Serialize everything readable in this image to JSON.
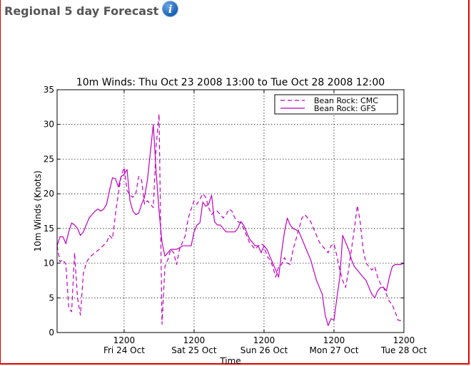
{
  "panel": {
    "title": "Regional 5 day Forecast",
    "info_icon": "info-icon"
  },
  "colors": {
    "series": "#bf00bf",
    "border": "#e00000",
    "title_text": "#555555"
  },
  "chart_data": {
    "type": "line",
    "title": "10m Winds: Thu Oct 23 2008 13:00 to Tue Oct 28 2008 12:00",
    "xlabel": "Time",
    "ylabel": "10m Winds (Knots)",
    "xlim": [
      0,
      119
    ],
    "ylim": [
      0,
      35
    ],
    "yticks": [
      0,
      5,
      10,
      15,
      20,
      25,
      30,
      35
    ],
    "x_unit": "hours since Thu Oct 23 2008 13:00",
    "xticks": [
      {
        "x": 23,
        "time": "1200",
        "date": "Fri 24 Oct"
      },
      {
        "x": 47,
        "time": "1200",
        "date": "Sat 25 Oct"
      },
      {
        "x": 71,
        "time": "1200",
        "date": "Sun 26 Oct"
      },
      {
        "x": 95,
        "time": "1200",
        "date": "Mon 27 Oct"
      },
      {
        "x": 119,
        "time": "1200",
        "date": "Tue 28 Oct"
      }
    ],
    "grid": true,
    "legend_position": "top-right",
    "series": [
      {
        "name": "Bean Rock: CMC",
        "style": "dashed",
        "points": [
          [
            0,
            12.5
          ],
          [
            1,
            10.2
          ],
          [
            2,
            10.5
          ],
          [
            3,
            9.8
          ],
          [
            4,
            3.5
          ],
          [
            5,
            3.0
          ],
          [
            6,
            11.5
          ],
          [
            7,
            5.0
          ],
          [
            8,
            2.5
          ],
          [
            9,
            8.5
          ],
          [
            10,
            10.0
          ],
          [
            11,
            10.8
          ],
          [
            13,
            11.5
          ],
          [
            15,
            12.2
          ],
          [
            17,
            13.0
          ],
          [
            18,
            14.0
          ],
          [
            19,
            13.5
          ],
          [
            20,
            17.0
          ],
          [
            21,
            20.0
          ],
          [
            22,
            22.5
          ],
          [
            23,
            23.8
          ],
          [
            24,
            20.5
          ],
          [
            25,
            19.8
          ],
          [
            26,
            19.5
          ],
          [
            27,
            20.0
          ],
          [
            28,
            22.5
          ],
          [
            29,
            22.0
          ],
          [
            30,
            18.5
          ],
          [
            31,
            19.0
          ],
          [
            32,
            18.5
          ],
          [
            33,
            18.0
          ],
          [
            34,
            27.0
          ],
          [
            35,
            31.5
          ],
          [
            36,
            1.2
          ],
          [
            37,
            9.5
          ],
          [
            38,
            10.5
          ],
          [
            39,
            12.0
          ],
          [
            40,
            11.5
          ],
          [
            41,
            9.8
          ],
          [
            42,
            12.0
          ],
          [
            43,
            13.0
          ],
          [
            44,
            14.0
          ],
          [
            45,
            16.5
          ],
          [
            46,
            17.8
          ],
          [
            47,
            19.0
          ],
          [
            48,
            18.5
          ],
          [
            49,
            19.2
          ],
          [
            50,
            20.0
          ],
          [
            51,
            19.5
          ],
          [
            52,
            18.0
          ],
          [
            53,
            17.0
          ],
          [
            54,
            17.5
          ],
          [
            55,
            17.5
          ],
          [
            56,
            17.0
          ],
          [
            57,
            16.5
          ],
          [
            58,
            17.0
          ],
          [
            59,
            17.8
          ],
          [
            60,
            17.5
          ],
          [
            61,
            16.5
          ],
          [
            62,
            16.0
          ],
          [
            63,
            15.8
          ],
          [
            64,
            15.0
          ],
          [
            65,
            14.0
          ],
          [
            66,
            13.0
          ],
          [
            67,
            12.5
          ],
          [
            68,
            12.0
          ],
          [
            69,
            12.5
          ],
          [
            70,
            12.8
          ],
          [
            71,
            12.5
          ],
          [
            72,
            11.0
          ],
          [
            73,
            10.5
          ],
          [
            74,
            9.5
          ],
          [
            75,
            8.0
          ],
          [
            76,
            9.5
          ],
          [
            77,
            9.8
          ],
          [
            78,
            10.8
          ],
          [
            79,
            10.0
          ],
          [
            80,
            9.8
          ],
          [
            81,
            12.0
          ],
          [
            82,
            13.5
          ],
          [
            83,
            15.0
          ],
          [
            84,
            16.5
          ],
          [
            85,
            17.0
          ],
          [
            86,
            16.5
          ],
          [
            87,
            16.0
          ],
          [
            88,
            15.0
          ],
          [
            89,
            14.0
          ],
          [
            90,
            13.0
          ],
          [
            91,
            12.5
          ],
          [
            92,
            12.0
          ],
          [
            93,
            11.5
          ],
          [
            94,
            12.5
          ],
          [
            95,
            12.8
          ],
          [
            96,
            11.0
          ],
          [
            97,
            9.0
          ],
          [
            98,
            7.5
          ],
          [
            99,
            6.5
          ],
          [
            100,
            9.0
          ],
          [
            101,
            12.0
          ],
          [
            102,
            15.0
          ],
          [
            103,
            18.3
          ],
          [
            104,
            16.0
          ],
          [
            105,
            12.0
          ],
          [
            106,
            10.0
          ],
          [
            107,
            9.5
          ],
          [
            108,
            9.0
          ],
          [
            109,
            9.5
          ],
          [
            110,
            8.0
          ],
          [
            111,
            7.0
          ],
          [
            112,
            6.5
          ],
          [
            113,
            5.5
          ],
          [
            114,
            4.5
          ],
          [
            115,
            4.0
          ],
          [
            116,
            3.0
          ],
          [
            117,
            1.8
          ],
          [
            118,
            1.7
          ],
          [
            119,
            1.7
          ]
        ]
      },
      {
        "name": "Bean Rock: GFS",
        "style": "solid",
        "points": [
          [
            0,
            12.5
          ],
          [
            1,
            13.8
          ],
          [
            2,
            13.8
          ],
          [
            3,
            12.8
          ],
          [
            4,
            14.5
          ],
          [
            5,
            15.8
          ],
          [
            6,
            15.5
          ],
          [
            7,
            15.0
          ],
          [
            8,
            14.0
          ],
          [
            9,
            14.5
          ],
          [
            10,
            15.5
          ],
          [
            11,
            16.5
          ],
          [
            12,
            17.0
          ],
          [
            13,
            17.5
          ],
          [
            14,
            17.8
          ],
          [
            15,
            17.5
          ],
          [
            16,
            17.8
          ],
          [
            17,
            18.5
          ],
          [
            18,
            20.5
          ],
          [
            19,
            22.3
          ],
          [
            20,
            22.2
          ],
          [
            21,
            21.0
          ],
          [
            22,
            22.5
          ],
          [
            23,
            22.8
          ],
          [
            24,
            23.5
          ],
          [
            25,
            19.0
          ],
          [
            26,
            17.5
          ],
          [
            27,
            17.0
          ],
          [
            28,
            17.2
          ],
          [
            29,
            18.5
          ],
          [
            30,
            19.5
          ],
          [
            31,
            22.0
          ],
          [
            32,
            26.0
          ],
          [
            33,
            30.0
          ],
          [
            34,
            23.0
          ],
          [
            35,
            17.5
          ],
          [
            36,
            13.0
          ],
          [
            37,
            11.0
          ],
          [
            38,
            11.5
          ],
          [
            39,
            12.0
          ],
          [
            40,
            12.0
          ],
          [
            41,
            12.0
          ],
          [
            42,
            12.2
          ],
          [
            43,
            12.5
          ],
          [
            44,
            12.5
          ],
          [
            45,
            12.5
          ],
          [
            46,
            12.5
          ],
          [
            47,
            14.5
          ],
          [
            48,
            15.5
          ],
          [
            49,
            15.8
          ],
          [
            50,
            18.8
          ],
          [
            51,
            18.2
          ],
          [
            52,
            18.5
          ],
          [
            53,
            19.8
          ],
          [
            54,
            16.0
          ],
          [
            55,
            15.5
          ],
          [
            56,
            15.5
          ],
          [
            57,
            15.0
          ],
          [
            58,
            14.5
          ],
          [
            59,
            14.5
          ],
          [
            60,
            14.5
          ],
          [
            61,
            14.5
          ],
          [
            62,
            15.0
          ],
          [
            63,
            16.0
          ],
          [
            64,
            15.5
          ],
          [
            65,
            14.5
          ],
          [
            66,
            13.5
          ],
          [
            67,
            13.0
          ],
          [
            68,
            12.5
          ],
          [
            69,
            12.5
          ],
          [
            70,
            11.5
          ],
          [
            71,
            12.5
          ],
          [
            72,
            12.0
          ],
          [
            73,
            11.0
          ],
          [
            74,
            10.0
          ],
          [
            75,
            9.0
          ],
          [
            76,
            8.0
          ],
          [
            77,
            11.5
          ],
          [
            78,
            14.5
          ],
          [
            79,
            16.5
          ],
          [
            80,
            15.5
          ],
          [
            81,
            15.0
          ],
          [
            82,
            14.8
          ],
          [
            83,
            14.5
          ],
          [
            84,
            13.5
          ],
          [
            85,
            12.5
          ],
          [
            86,
            11.5
          ],
          [
            87,
            10.5
          ],
          [
            88,
            9.0
          ],
          [
            89,
            7.5
          ],
          [
            90,
            6.5
          ],
          [
            91,
            5.5
          ],
          [
            92,
            2.5
          ],
          [
            93,
            1.0
          ],
          [
            94,
            2.0
          ],
          [
            95,
            1.8
          ],
          [
            96,
            5.0
          ],
          [
            97,
            8.0
          ],
          [
            98,
            14.0
          ],
          [
            99,
            13.0
          ],
          [
            100,
            12.0
          ],
          [
            101,
            10.5
          ],
          [
            102,
            9.5
          ],
          [
            103,
            9.0
          ],
          [
            104,
            8.5
          ],
          [
            105,
            8.0
          ],
          [
            106,
            7.5
          ],
          [
            107,
            6.5
          ],
          [
            108,
            5.5
          ],
          [
            109,
            5.0
          ],
          [
            110,
            6.0
          ],
          [
            111,
            6.5
          ],
          [
            112,
            6.5
          ],
          [
            113,
            6.0
          ],
          [
            114,
            8.0
          ],
          [
            115,
            9.5
          ],
          [
            116,
            9.8
          ],
          [
            117,
            9.8
          ],
          [
            118,
            9.8
          ],
          [
            119,
            10.0
          ]
        ]
      }
    ]
  }
}
